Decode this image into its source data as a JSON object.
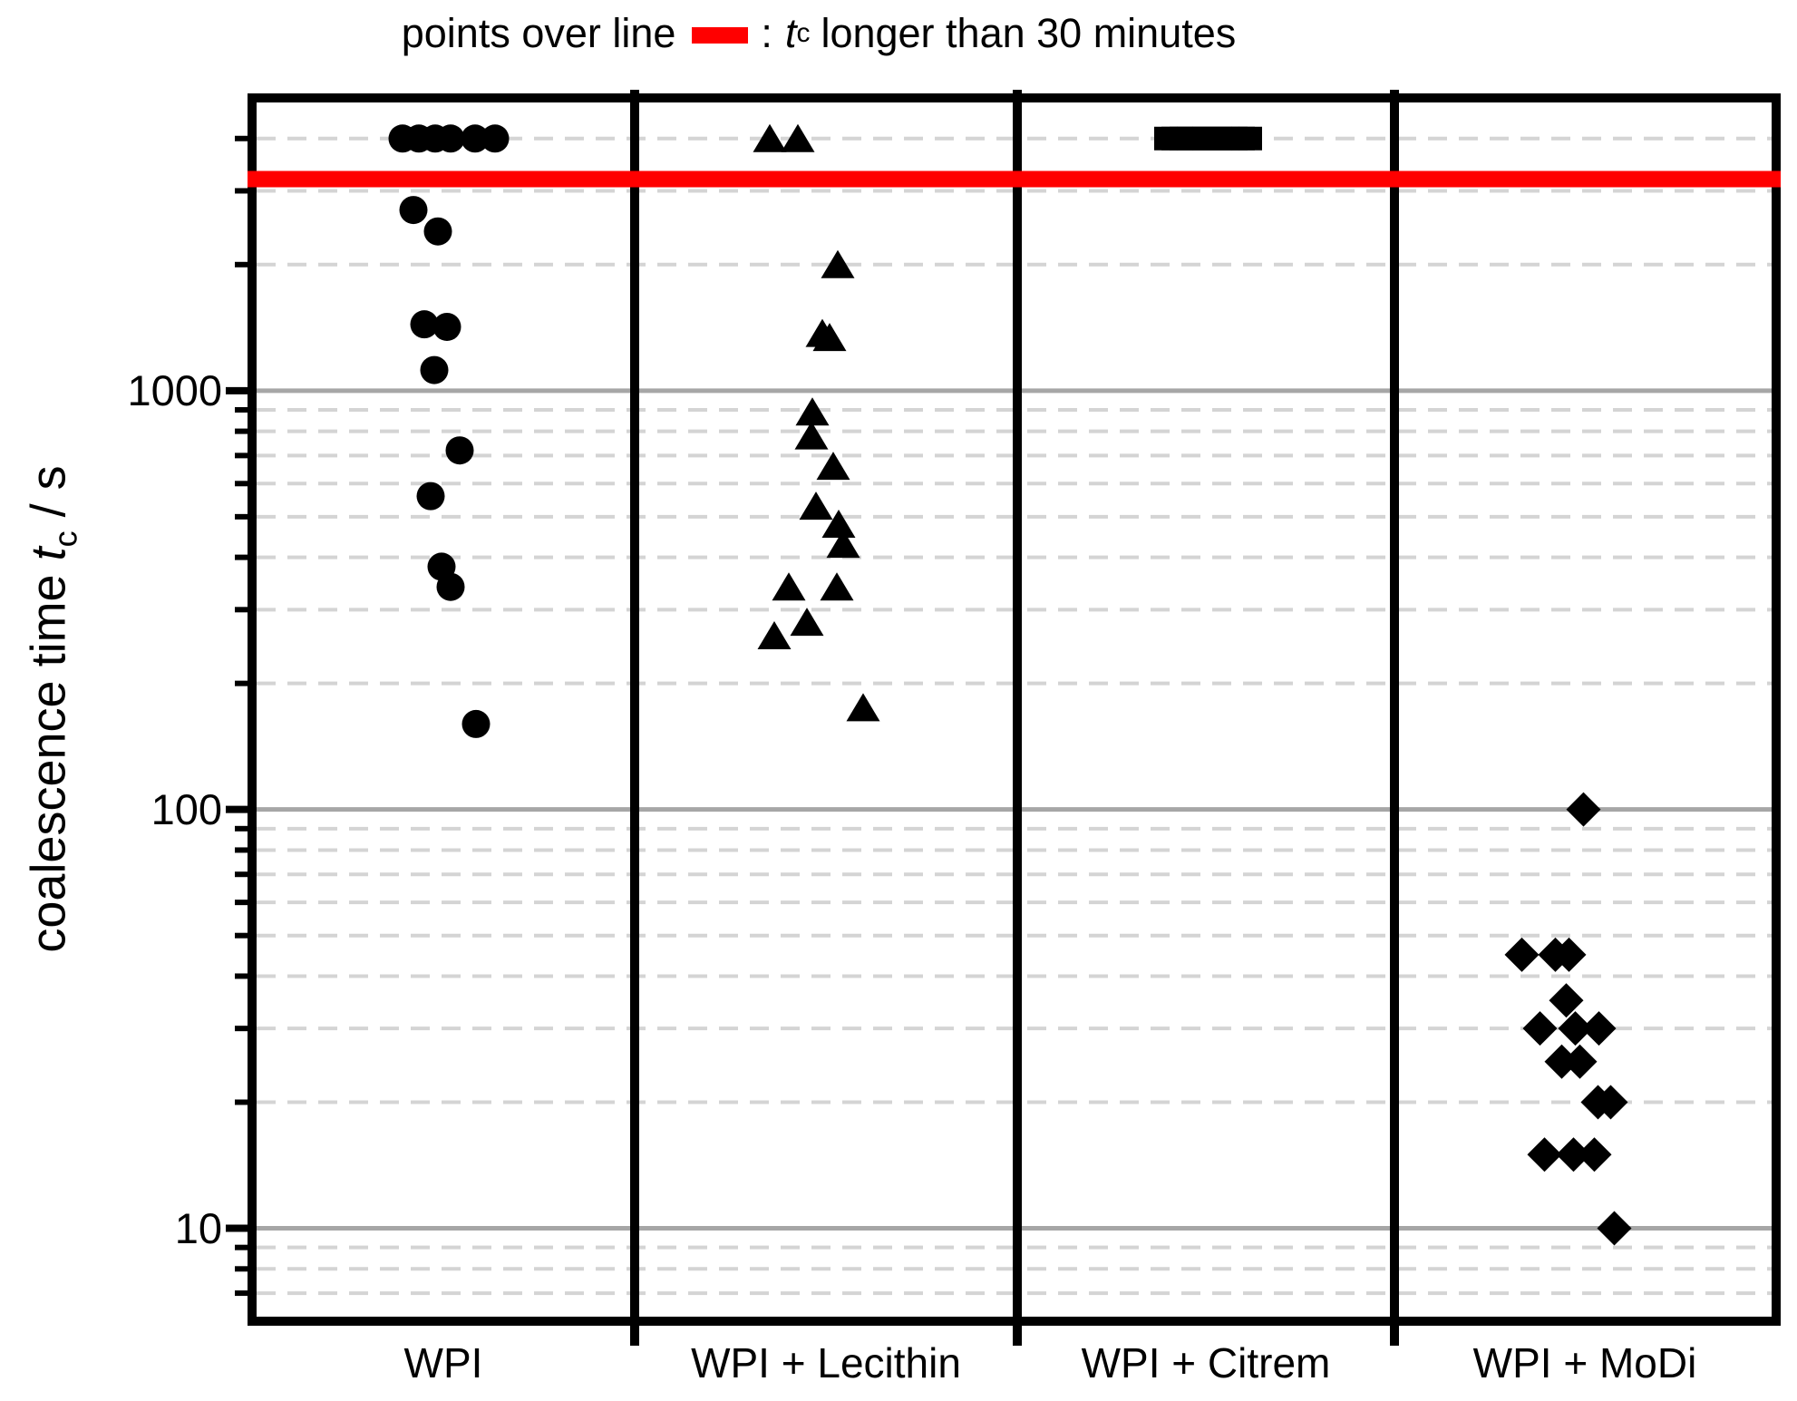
{
  "title": {
    "prefix": "points over line",
    "colon": ":",
    "t": "t",
    "t_sub": "c",
    "suffix": "longer than 30 minutes"
  },
  "y_axis": {
    "label_prefix": "coalescence time ",
    "label_t": "t",
    "label_t_sub": "c",
    "label_suffix": " / s",
    "tick_labels": [
      "1000",
      "100",
      "10"
    ]
  },
  "chart_data": {
    "type": "scatter",
    "title": "points over line (red bar) : tc longer than 30 minutes",
    "ylabel": "coalescence time tc / s",
    "xlabel": "",
    "yscale": "log",
    "ylim": [
      6,
      5000
    ],
    "grid": "major solid gray lines at 10, 100, 1000; minor dashed gray lines at 2-9 multiples of each decade",
    "legend_position": "title line, top center",
    "categories": [
      "WPI",
      "WPI + Lecithin",
      "WPI + Citrem",
      "WPI + MoDi"
    ],
    "cutoff_line": {
      "meaning": "points over line have tc longer than 30 minutes",
      "cutoff_minutes": 30,
      "drawn_at_s": 3200,
      "color": "#ff0000"
    },
    "censored_drawn_at_s": 4000,
    "series": [
      {
        "name": "WPI",
        "marker": "circle",
        "points_over_line": {
          "count": 6,
          "dx": [
            -45,
            -27,
            -9,
            8,
            35,
            57
          ]
        },
        "tc_s": [
          2700,
          2400,
          1440,
          1420,
          1120,
          720,
          560,
          380,
          340,
          160
        ],
        "dx": [
          -33,
          -6,
          -21,
          4,
          -10,
          18,
          -14,
          -2,
          8,
          36
        ]
      },
      {
        "name": "WPI + Lecithin",
        "marker": "triangle",
        "points_over_line": {
          "count": 2,
          "dx": [
            -62,
            -31
          ]
        },
        "tc_s": [
          2000,
          1370,
          1340,
          890,
          780,
          660,
          530,
          480,
          430,
          340,
          340,
          280,
          260,
          175
        ],
        "dx": [
          13,
          -4,
          4,
          -15,
          -16,
          8,
          -11,
          14,
          19,
          -41,
          12,
          -21,
          -57,
          41
        ]
      },
      {
        "name": "WPI + Citrem",
        "marker": "square",
        "points_over_line": {
          "count": 12,
          "dx": [
            -44,
            -36,
            -27,
            -19,
            -10,
            -2,
            7,
            16,
            24,
            33,
            41,
            49
          ]
        },
        "tc_s": [],
        "dx": []
      },
      {
        "name": "WPI + MoDi",
        "marker": "diamond",
        "points_over_line": {
          "count": 0,
          "dx": []
        },
        "tc_s": [
          100,
          45,
          45,
          45,
          35,
          30,
          30,
          30,
          25,
          25,
          20,
          20,
          15,
          15,
          15,
          10
        ],
        "dx": [
          -2,
          -70,
          -33,
          -18,
          -21,
          -50,
          -11,
          15,
          -26,
          -6,
          14,
          28,
          -45,
          -13,
          10,
          32
        ]
      }
    ],
    "colors": {
      "marker": "#000000",
      "cutoff_line": "#ff0000",
      "grid_major": "#a6a6a6",
      "grid_minor": "#d4d4d4",
      "axis": "#000000"
    }
  }
}
